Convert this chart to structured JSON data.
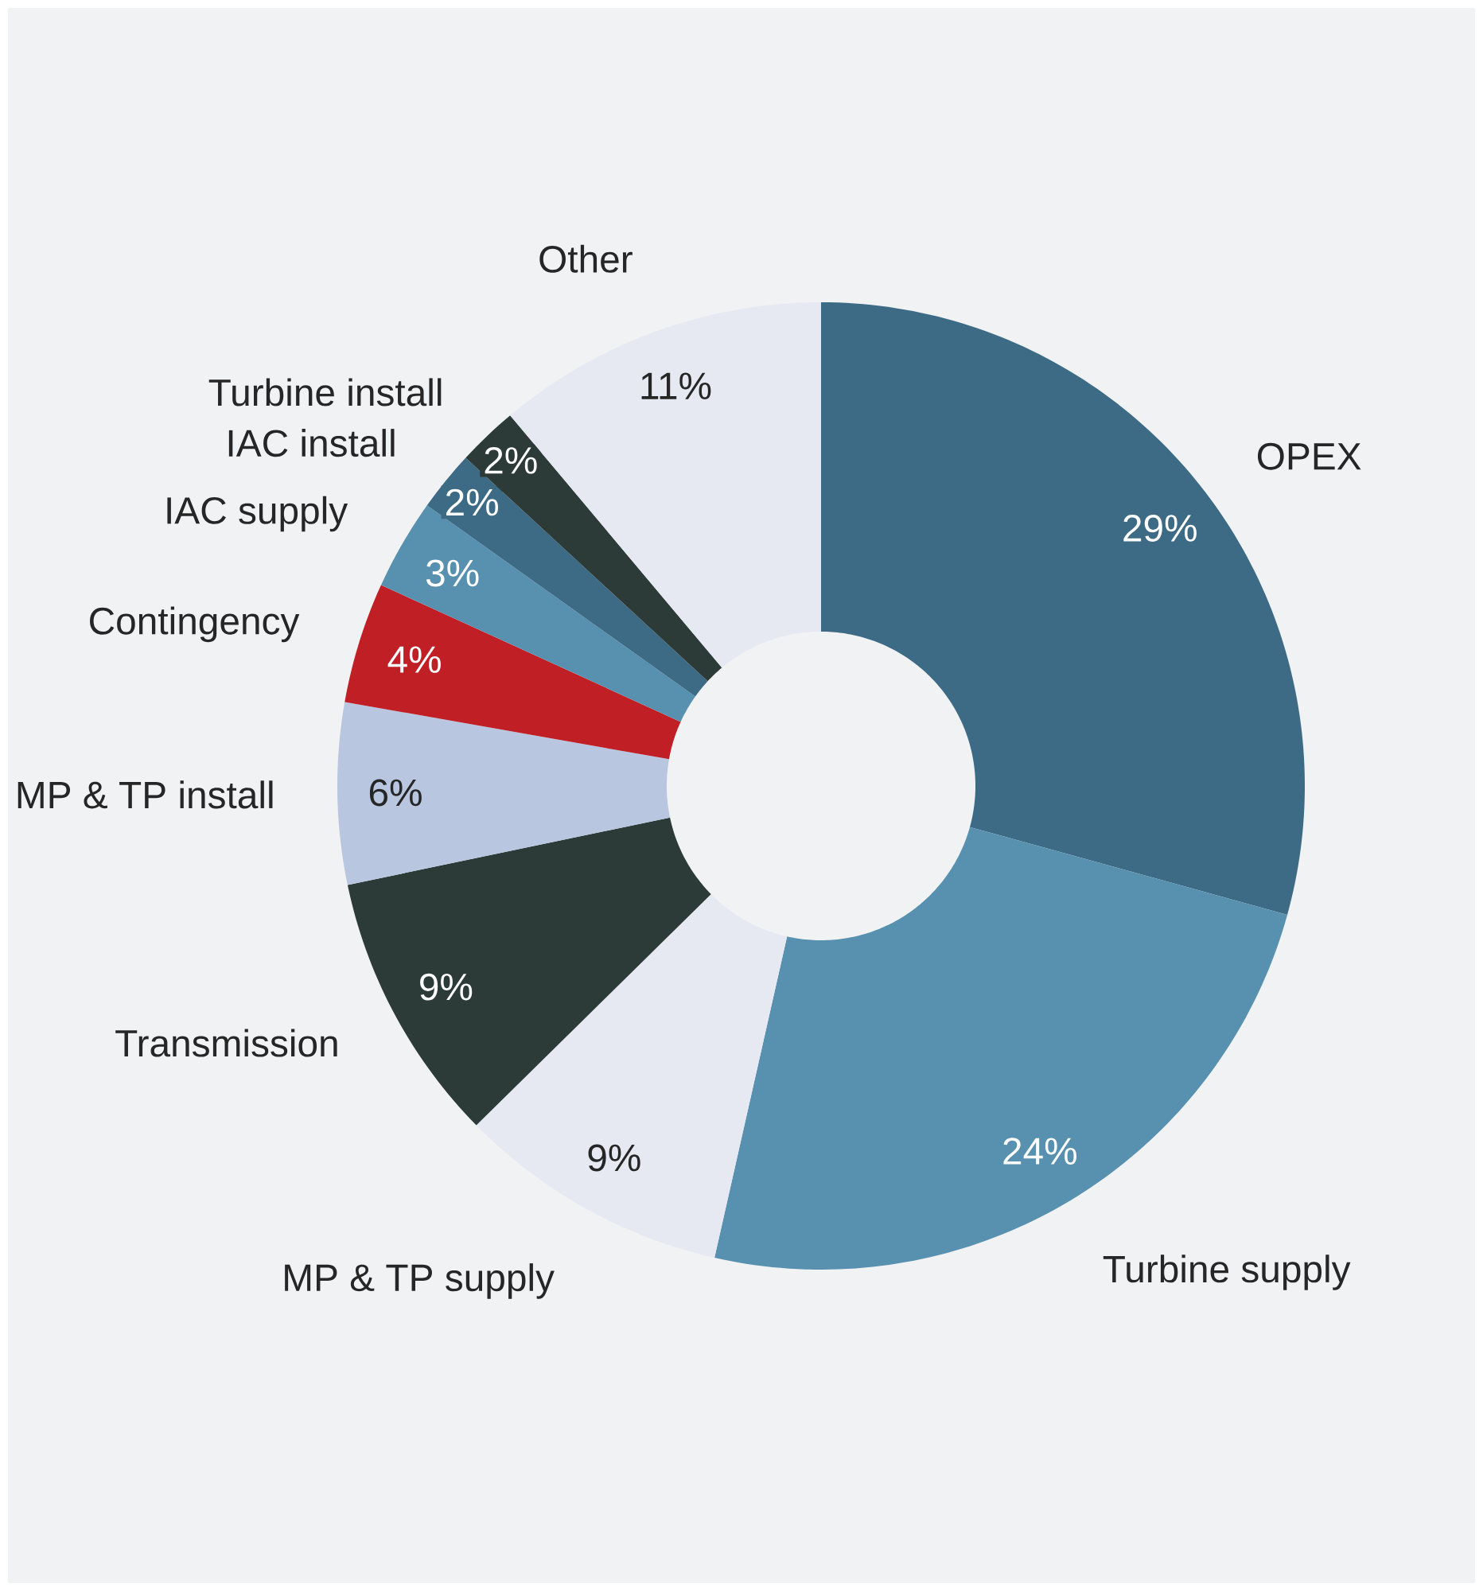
{
  "chart_data": {
    "type": "donut",
    "categories": [
      "OPEX",
      "Turbine supply",
      "MP & TP supply",
      "Transmission",
      "MP & TP install",
      "Contingency",
      "IAC supply",
      "IAC install",
      "Turbine install",
      "Other"
    ],
    "values": [
      29,
      24,
      9,
      9,
      6,
      4,
      3,
      2,
      2,
      11
    ],
    "colors": [
      "#3d6b85",
      "#5890b0",
      "#e6e9f2",
      "#2c3a38",
      "#b8c6e0",
      "#c11f26",
      "#5890b0",
      "#3d6b85",
      "#2c3a38",
      "#e6e9f2"
    ],
    "value_labels": [
      "29%",
      "24%",
      "9%",
      "9%",
      "6%",
      "4%",
      "3%",
      "2%",
      "2%",
      "11%"
    ]
  }
}
